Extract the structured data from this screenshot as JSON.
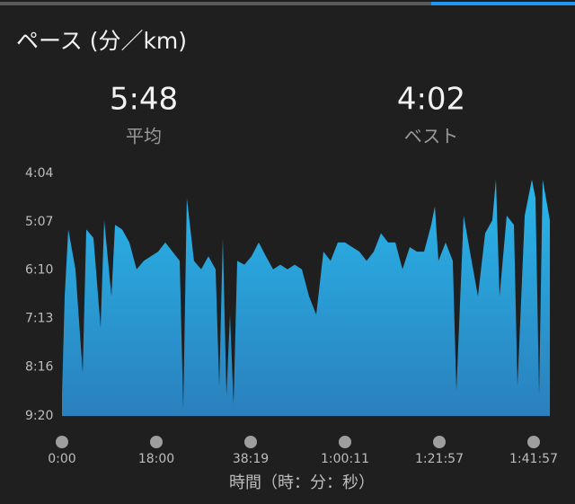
{
  "chart_data": {
    "type": "area",
    "title": "ペース (分／km)",
    "xlabel": "時間（時：分：秒）",
    "summary": [
      {
        "value": "5:48",
        "label": "平均"
      },
      {
        "value": "4:02",
        "label": "ベスト"
      }
    ],
    "colors": [
      "#29b6ea",
      "#2a80bd"
    ],
    "x": [
      0,
      31,
      72,
      154,
      237,
      278,
      360,
      442,
      483,
      566,
      607,
      689,
      771,
      854,
      936,
      1018,
      1103,
      1196,
      1289,
      1382,
      1428,
      1474,
      1567,
      1660,
      1753,
      1846,
      1893,
      1939,
      1986,
      2032,
      2078,
      2125,
      2218,
      2311,
      2411,
      2511,
      2611,
      2711,
      2811,
      2911,
      3011,
      3111,
      3211,
      3311,
      3411,
      3511,
      3611,
      3710,
      3810,
      3910,
      4009,
      4109,
      4208,
      4308,
      4407,
      4507,
      4606,
      4706,
      4805,
      4855,
      4905,
      4997,
      5088,
      5134,
      5226,
      5317,
      5408,
      5500,
      5591,
      5637,
      5683,
      5774,
      5866,
      5911,
      6003,
      6094,
      6140,
      6186,
      6231,
      6323
    ],
    "values": [
      533,
      404,
      317,
      369,
      504,
      317,
      328,
      445,
      305,
      404,
      311,
      317,
      334,
      369,
      358,
      352,
      346,
      334,
      346,
      358,
      551,
      276,
      358,
      369,
      352,
      369,
      521,
      328,
      533,
      428,
      545,
      358,
      363,
      352,
      334,
      352,
      369,
      363,
      369,
      363,
      369,
      404,
      428,
      346,
      358,
      334,
      334,
      340,
      346,
      358,
      346,
      322,
      334,
      334,
      369,
      340,
      346,
      346,
      311,
      287,
      358,
      334,
      358,
      527,
      299,
      352,
      404,
      322,
      305,
      252,
      404,
      299,
      311,
      521,
      299,
      252,
      276,
      533,
      252,
      305
    ],
    "xlim": [
      0,
      6323
    ],
    "ylim": [
      560,
      244
    ],
    "xticks": [
      {
        "value": 0,
        "label": "0:00"
      },
      {
        "value": 1080,
        "label": "18:00"
      },
      {
        "value": 2299,
        "label": "38:19"
      },
      {
        "value": 3611,
        "label": "1:00:11"
      },
      {
        "value": 4917,
        "label": "1:21:57"
      },
      {
        "value": 6117,
        "label": "1:41:57"
      }
    ],
    "yticks": [
      {
        "value": 244,
        "label": "4:04"
      },
      {
        "value": 307,
        "label": "5:07"
      },
      {
        "value": 370,
        "label": "6:10"
      },
      {
        "value": 433,
        "label": "7:13"
      },
      {
        "value": 496,
        "label": "8:16"
      },
      {
        "value": 560,
        "label": "9:20"
      }
    ]
  }
}
